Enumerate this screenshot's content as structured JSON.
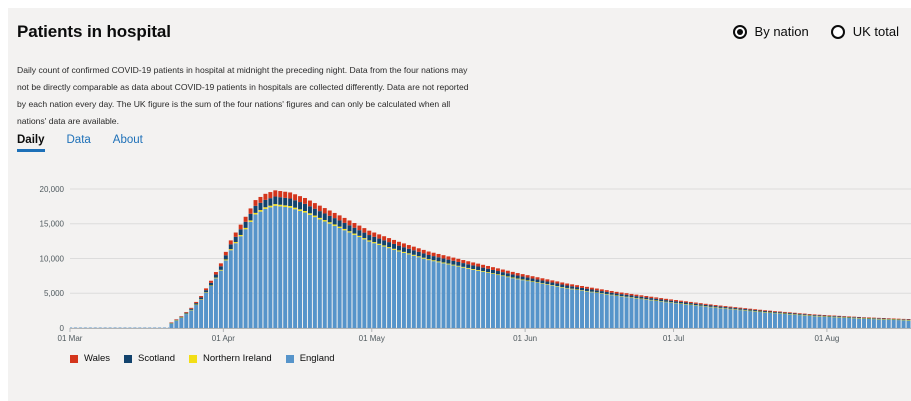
{
  "header": {
    "title": "Patients in hospital"
  },
  "toggle": {
    "by_nation_label": "By nation",
    "uk_total_label": "UK total",
    "selected": "By nation"
  },
  "description": "Daily count of confirmed COVID-19 patients in hospital at midnight the preceding night. Data from the four nations may not be directly comparable as data about COVID-19 patients in hospitals are collected differently. Data are not reported by each nation every day. The UK figure is the sum of the four nations' figures and can only be calculated when all nations' data are available.",
  "tabs": [
    {
      "label": "Daily",
      "active": true
    },
    {
      "label": "Data",
      "active": false
    },
    {
      "label": "About",
      "active": false
    }
  ],
  "chart_data": {
    "type": "bar",
    "stacked": true,
    "ylim": [
      0,
      21000
    ],
    "y_ticks": [
      0,
      5000,
      10000,
      15000,
      20000
    ],
    "y_tick_labels": [
      "0",
      "5,000",
      "10,000",
      "15,000",
      "20,000"
    ],
    "x_tick_labels": [
      "01 Mar",
      "01 Apr",
      "01 May",
      "01 Jun",
      "01 Jul",
      "01 Aug"
    ],
    "x_tick_days": [
      0,
      31,
      61,
      92,
      122,
      153
    ],
    "x_range_days": [
      0,
      170
    ],
    "grid": true,
    "legend_position": "bottom-left",
    "series": [
      {
        "name": "Wales",
        "color": "#d4351c",
        "share": 0.045
      },
      {
        "name": "Scotland",
        "color": "#12436d",
        "share": 0.055
      },
      {
        "name": "Northern Ireland",
        "color": "#f2de16",
        "share": 0.012
      },
      {
        "name": "England",
        "color": "#5694ca",
        "share": 0.888
      }
    ],
    "total_keypoints": [
      [
        0,
        0
      ],
      [
        19,
        0
      ],
      [
        20,
        800
      ],
      [
        22,
        1700
      ],
      [
        24,
        2900
      ],
      [
        26,
        4600
      ],
      [
        28,
        6800
      ],
      [
        30,
        9300
      ],
      [
        32,
        12600
      ],
      [
        35,
        16000
      ],
      [
        37,
        18400
      ],
      [
        39,
        19300
      ],
      [
        41,
        19800
      ],
      [
        44,
        19500
      ],
      [
        47,
        18700
      ],
      [
        50,
        17600
      ],
      [
        54,
        16200
      ],
      [
        60,
        14000
      ],
      [
        66,
        12400
      ],
      [
        72,
        11000
      ],
      [
        80,
        9600
      ],
      [
        90,
        7900
      ],
      [
        100,
        6400
      ],
      [
        110,
        5200
      ],
      [
        120,
        4200
      ],
      [
        130,
        3300
      ],
      [
        140,
        2550
      ],
      [
        150,
        1950
      ],
      [
        160,
        1550
      ],
      [
        170,
        1250
      ]
    ]
  }
}
